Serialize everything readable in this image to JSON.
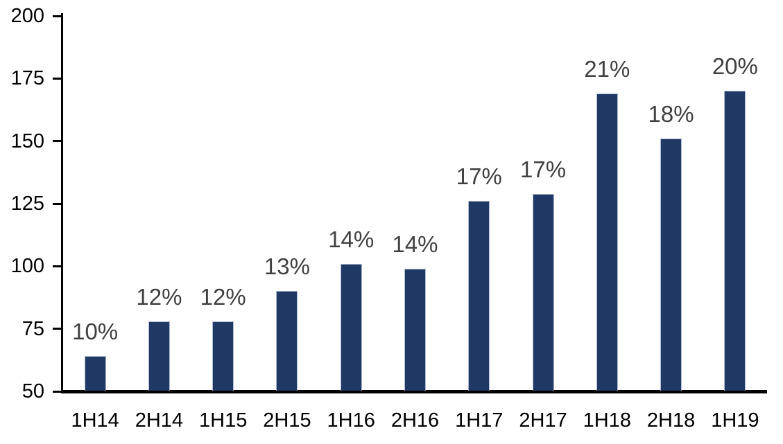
{
  "chart_data": {
    "type": "bar",
    "title": "",
    "xlabel": "",
    "ylabel": "",
    "categories": [
      "1H14",
      "2H14",
      "1H15",
      "2H15",
      "1H16",
      "2H16",
      "1H17",
      "2H17",
      "1H18",
      "2H18",
      "1H19"
    ],
    "values": [
      64,
      78,
      78,
      90,
      101,
      99,
      126,
      129,
      169,
      151,
      170
    ],
    "bar_labels": [
      "10%",
      "12%",
      "12%",
      "13%",
      "14%",
      "14%",
      "17%",
      "17%",
      "21%",
      "18%",
      "20%"
    ],
    "ylim": [
      50,
      200
    ],
    "yticks": [
      50,
      75,
      100,
      125,
      150,
      175,
      200
    ],
    "grid": false,
    "legend": "none",
    "colors": {
      "bar_fill": "#1F3864",
      "bar_border": "#AEBBD0",
      "data_label": "#404040",
      "axis": "#000000",
      "background": "#FFFFFF"
    }
  }
}
